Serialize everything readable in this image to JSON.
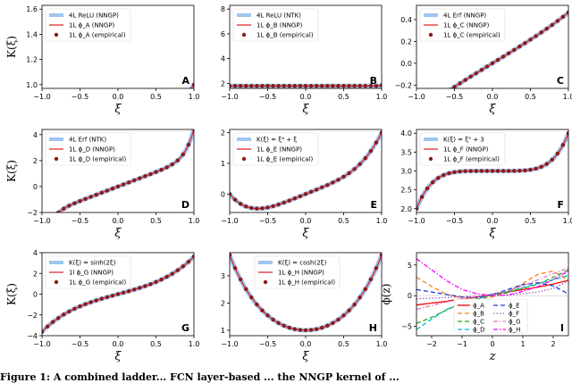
{
  "figure_caption": "Figure 1: A combined ladder... FCN layer-based ... the NNGP kernel of ...",
  "chart_data": [
    {
      "id": "A",
      "type": "line",
      "panel_label": "A",
      "function": "relu_nngp",
      "xlabel": "ξ",
      "ylabel": "K(ξ)",
      "xlim": [
        -1.0,
        1.0
      ],
      "ylim": [
        0.97,
        1.63
      ],
      "xticks": [
        -1.0,
        -0.5,
        0.0,
        0.5,
        1.0
      ],
      "xtick_labels": [
        "−1.0",
        "−0.5",
        "0.0",
        "0.5",
        "1.0"
      ],
      "yticks": [
        1.0,
        1.2,
        1.4,
        1.6
      ],
      "ytick_labels": [
        "1.0",
        "1.2",
        "1.4",
        "1.6"
      ],
      "legend_loc": "top-left",
      "legend": [
        "4L ReLU (NNGP)",
        "1L ϕ_A (NNGP)",
        "1L ϕ_A (empirical)"
      ]
    },
    {
      "id": "B",
      "type": "line",
      "panel_label": "B",
      "function": "relu_ntk",
      "xlabel": "ξ",
      "ylabel": "",
      "xlim": [
        -1.0,
        1.0
      ],
      "ylim": [
        1.6,
        8.3
      ],
      "xticks": [
        -1.0,
        -0.5,
        0.0,
        0.5,
        1.0
      ],
      "xtick_labels": [
        "−1.0",
        "−0.5",
        "0.0",
        "0.5",
        "1.0"
      ],
      "yticks": [
        2,
        4,
        6,
        8
      ],
      "ytick_labels": [
        "2",
        "4",
        "6",
        "8"
      ],
      "legend_loc": "top-left",
      "legend": [
        "4L ReLU (NTK)",
        "1L ϕ_B (NNGP)",
        "1L ϕ_B (empirical)"
      ]
    },
    {
      "id": "C",
      "type": "line",
      "panel_label": "C",
      "function": "erf_nngp",
      "xlabel": "ξ",
      "ylabel": "",
      "xlim": [
        -1.0,
        1.0
      ],
      "ylim": [
        -0.23,
        0.53
      ],
      "xticks": [
        -1.0,
        -0.5,
        0.0,
        0.5,
        1.0
      ],
      "xtick_labels": [
        "−1.0",
        "−0.5",
        "0.0",
        "0.5",
        "1.0"
      ],
      "yticks": [
        -0.2,
        0.0,
        0.2,
        0.4
      ],
      "ytick_labels": [
        "−0.2",
        "0.0",
        "0.2",
        "0.4"
      ],
      "legend_loc": "top-left",
      "legend": [
        "4L Erf (NNGP)",
        "1L ϕ_C (NNGP)",
        "1L ϕ_C (empirical)"
      ]
    },
    {
      "id": "D",
      "type": "line",
      "panel_label": "D",
      "function": "erf_ntk",
      "xlabel": "ξ",
      "ylabel": "K(ξ)",
      "xlim": [
        -1.0,
        1.0
      ],
      "ylim": [
        -2.0,
        4.4
      ],
      "xticks": [
        -1.0,
        -0.5,
        0.0,
        0.5,
        1.0
      ],
      "xtick_labels": [
        "−1.0",
        "−0.5",
        "0.0",
        "0.5",
        "1.0"
      ],
      "yticks": [
        -2,
        0,
        2,
        4
      ],
      "ytick_labels": [
        "−2",
        "0",
        "2",
        "4"
      ],
      "legend_loc": "top-left",
      "legend": [
        "4L Erf (NTK)",
        "1L ϕ_D (NNGP)",
        "1L ϕ_D (empirical)"
      ]
    },
    {
      "id": "E",
      "type": "line",
      "panel_label": "E",
      "function": "xi4_plus_xi",
      "xlabel": "ξ",
      "ylabel": "",
      "xlim": [
        -1.0,
        1.0
      ],
      "ylim": [
        -0.6,
        2.1
      ],
      "xticks": [
        -1.0,
        -0.5,
        0.0,
        0.5,
        1.0
      ],
      "xtick_labels": [
        "−1.0",
        "−0.5",
        "0.0",
        "0.5",
        "1.0"
      ],
      "yticks": [
        0,
        1,
        2
      ],
      "ytick_labels": [
        "0",
        "1",
        "2"
      ],
      "legend_loc": "top-left",
      "legend": [
        "K(ξ) = ξ⁴ + ξ",
        "1L ϕ_E (NNGP)",
        "1L ϕ_E (empirical)"
      ]
    },
    {
      "id": "F",
      "type": "line",
      "panel_label": "F",
      "function": "xi5_plus_3",
      "xlabel": "ξ",
      "ylabel": "",
      "xlim": [
        -1.0,
        1.0
      ],
      "ylim": [
        1.9,
        4.1
      ],
      "xticks": [
        -1.0,
        -0.5,
        0.0,
        0.5,
        1.0
      ],
      "xtick_labels": [
        "−1.0",
        "−0.5",
        "0.0",
        "0.5",
        "1.0"
      ],
      "yticks": [
        2.0,
        2.5,
        3.0,
        3.5,
        4.0
      ],
      "ytick_labels": [
        "2.0",
        "2.5",
        "3.0",
        "3.5",
        "4.0"
      ],
      "legend_loc": "top-left",
      "legend": [
        "K(ξ) = ξ⁵ + 3",
        "1L ϕ_F (NNGP)",
        "1L ϕ_F (empirical)"
      ]
    },
    {
      "id": "G",
      "type": "line",
      "panel_label": "G",
      "function": "sinh_2xi",
      "xlabel": "ξ",
      "ylabel": "K(ξ)",
      "xlim": [
        -1.0,
        1.0
      ],
      "ylim": [
        -4.0,
        4.0
      ],
      "xticks": [
        -1.0,
        -0.5,
        0.0,
        0.5,
        1.0
      ],
      "xtick_labels": [
        "−1.0",
        "−0.5",
        "0.0",
        "0.5",
        "1.0"
      ],
      "yticks": [
        -4,
        -2,
        0,
        2,
        4
      ],
      "ytick_labels": [
        "−4",
        "−2",
        "0",
        "2",
        "4"
      ],
      "legend_loc": "top-left",
      "legend": [
        "K(ξ) = sinh(2ξ)",
        "1l ϕ_G (NNGP)",
        "1L ϕ_G (empirical)"
      ]
    },
    {
      "id": "H",
      "type": "line",
      "panel_label": "H",
      "function": "cosh_2xi",
      "xlabel": "ξ",
      "ylabel": "",
      "xlim": [
        -1.0,
        1.0
      ],
      "ylim": [
        0.8,
        3.85
      ],
      "xticks": [
        -1.0,
        -0.5,
        0.0,
        0.5,
        1.0
      ],
      "xtick_labels": [
        "−1.0",
        "−0.5",
        "0.0",
        "0.5",
        "1.0"
      ],
      "yticks": [
        1,
        2,
        3
      ],
      "ytick_labels": [
        "1",
        "2",
        "3"
      ],
      "legend_loc": "top-center",
      "legend": [
        "K(ξ) = cosh(2ξ)",
        "1L ϕ_H (NNGP)",
        "1L ϕ_H (empirical)"
      ]
    },
    {
      "id": "I",
      "type": "line",
      "panel_label": "I",
      "xlabel": "z",
      "ylabel": "ϕ(z)",
      "xlim": [
        -2.5,
        2.5
      ],
      "ylim": [
        -6.5,
        7.0
      ],
      "xticks": [
        -2,
        -1,
        0,
        1,
        2
      ],
      "xtick_labels": [
        "−2",
        "−1",
        "0",
        "1",
        "2"
      ],
      "yticks": [
        -5,
        0,
        5
      ],
      "ytick_labels": [
        "−5",
        "0",
        "5"
      ],
      "legend_loc": "bottom-center",
      "series": [
        {
          "name": "ϕ_A",
          "color": "#ff0000",
          "dash": "solid",
          "x": [
            -2.5,
            -2,
            -1.5,
            -1,
            -0.5,
            0,
            0.5,
            1,
            1.5,
            2,
            2.5
          ],
          "y": [
            -1.5,
            -1.2,
            -0.9,
            -0.5,
            -0.2,
            0.2,
            0.6,
            1.0,
            1.4,
            1.9,
            2.5
          ]
        },
        {
          "name": "ϕ_B",
          "color": "#ff7f0e",
          "dash": "dashed",
          "x": [
            -2.5,
            -2,
            -1.5,
            -1,
            -0.5,
            0,
            0.5,
            1,
            1.5,
            2,
            2.5
          ],
          "y": [
            3.0,
            1.5,
            0.2,
            -0.4,
            -0.5,
            -0.2,
            0.5,
            2.0,
            3.5,
            4.0,
            2.5
          ]
        },
        {
          "name": "ϕ_C",
          "color": "#2ca02c",
          "dash": "dashed",
          "x": [
            -2.5,
            -2,
            -1.5,
            -1,
            -0.5,
            0,
            0.5,
            1,
            1.5,
            2,
            2.5
          ],
          "y": [
            -4.5,
            -3.5,
            -2.3,
            -1.2,
            -0.6,
            0.1,
            0.5,
            1.2,
            1.9,
            3.0,
            4.2
          ]
        },
        {
          "name": "ϕ_D",
          "color": "#00b8c8",
          "dash": "dashed",
          "x": [
            -2.5,
            -2,
            -1.5,
            -1,
            -0.5,
            0,
            0.5,
            1,
            1.5,
            2,
            2.5
          ],
          "y": [
            -5.5,
            -3.8,
            -2.2,
            -1.2,
            -0.5,
            0.2,
            0.7,
            1.3,
            2.0,
            2.6,
            3.3
          ]
        },
        {
          "name": "ϕ_E",
          "color": "#1f3ccf",
          "dash": "dashed",
          "x": [
            -2.5,
            -2,
            -1.5,
            -1,
            -0.5,
            0,
            0.5,
            1,
            1.5,
            2,
            2.5
          ],
          "y": [
            1.0,
            0.6,
            0.2,
            -0.2,
            -0.3,
            0.2,
            1.0,
            1.8,
            2.1,
            1.6,
            0.3
          ]
        },
        {
          "name": "ϕ_F",
          "color": "#9467bd",
          "dash": "dotted",
          "x": [
            -2.5,
            -2,
            -1.5,
            -1,
            -0.5,
            0,
            0.5,
            1,
            1.5,
            2,
            2.5
          ],
          "y": [
            -0.5,
            -0.4,
            -0.3,
            -0.2,
            -0.1,
            0.0,
            0.1,
            0.3,
            0.6,
            1.2,
            2.4
          ]
        },
        {
          "name": "ϕ_G",
          "color": "#e377c2",
          "dash": "dashdot",
          "x": [
            -2.5,
            -2,
            -1.5,
            -1,
            -0.5,
            0,
            0.5,
            1,
            1.5,
            2,
            2.5
          ],
          "y": [
            -2.2,
            -1.6,
            -1.0,
            -0.5,
            -0.1,
            0.3,
            0.8,
            1.6,
            2.6,
            3.6,
            4.5
          ]
        },
        {
          "name": "ϕ_H",
          "color": "#ff00ff",
          "dash": "dashdot",
          "x": [
            -2.5,
            -2,
            -1.5,
            -1,
            -0.5,
            0,
            0.5,
            1,
            1.5,
            2,
            2.5
          ],
          "y": [
            6.0,
            4.2,
            2.4,
            1.0,
            0.3,
            0.0,
            0.1,
            0.7,
            1.5,
            2.6,
            4.0
          ]
        }
      ]
    }
  ]
}
